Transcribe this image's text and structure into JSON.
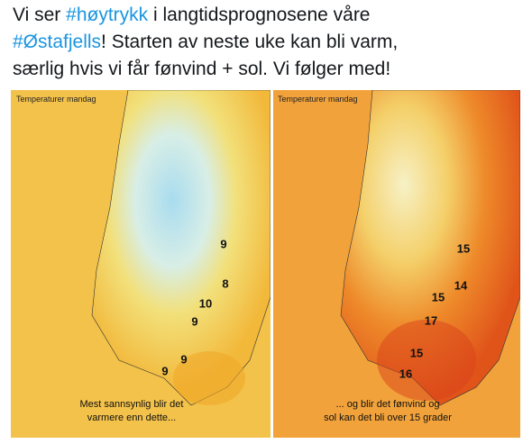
{
  "tweet": {
    "text": [
      "Vi ser ",
      "#høytrykk",
      " i langtidsprognosene våre",
      "#Østafjells",
      "! Starten av neste uke kan bli varm,",
      "særlig hvis vi får fønvind + sol. Vi følger med!"
    ]
  },
  "maps": [
    {
      "label": "Temperaturer mandag",
      "values": [
        9,
        8,
        10,
        9,
        9,
        9
      ],
      "caption": [
        "Mest sannsynlig blir det",
        "varmere enn dette..."
      ]
    },
    {
      "label": "Temperaturer mandag",
      "values": [
        15,
        14,
        15,
        17,
        15,
        16
      ],
      "caption": [
        "... og blir det fønvind og",
        "sol kan det bli over 15 grader"
      ]
    }
  ]
}
